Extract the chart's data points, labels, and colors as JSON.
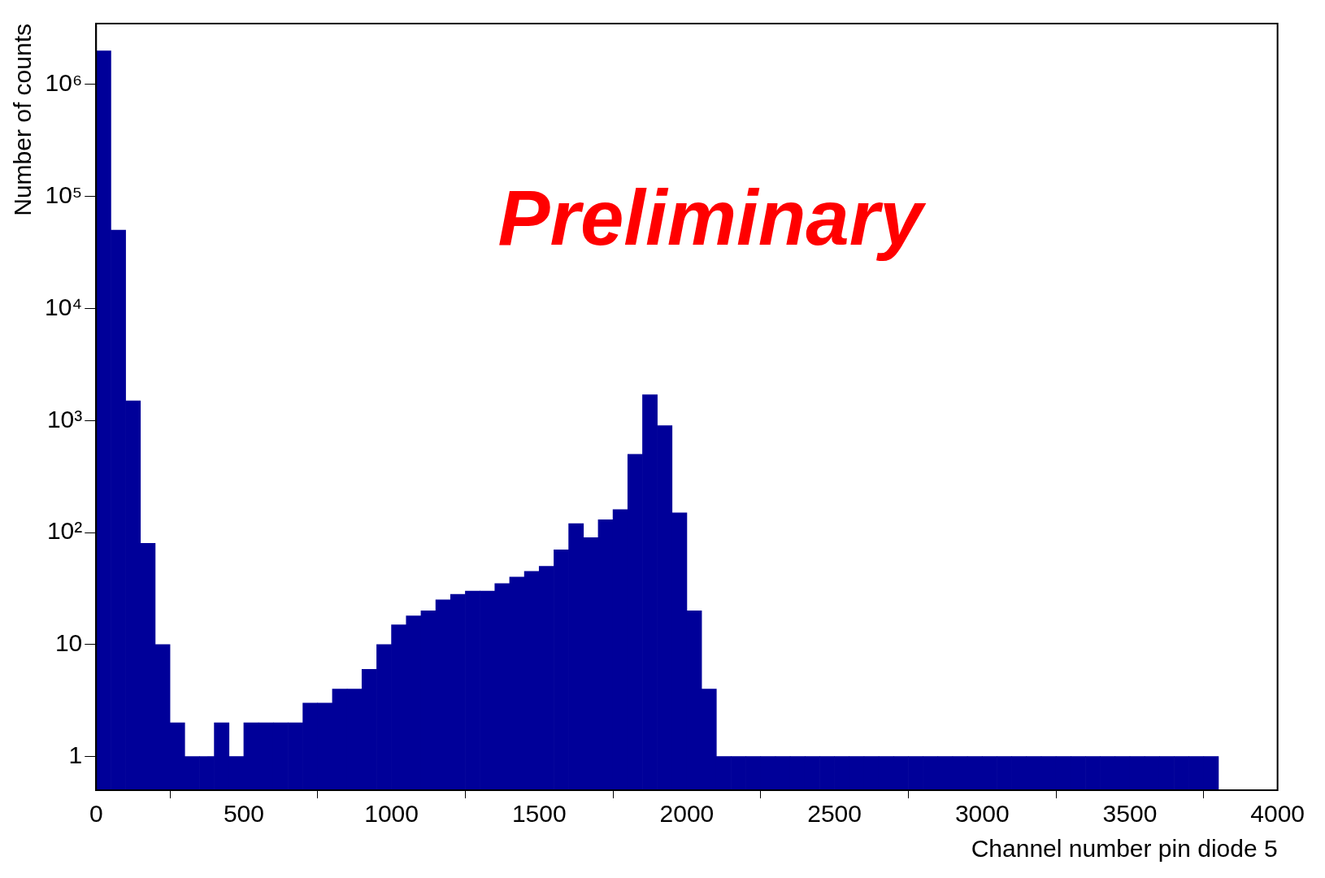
{
  "chart_data": {
    "type": "histogram",
    "xlabel": "Channel number pin diode 5",
    "ylabel": "Number of counts",
    "annotations": [
      "Preliminary"
    ],
    "bins": [
      0,
      50,
      100,
      150,
      200,
      250,
      300,
      350,
      400,
      450,
      500,
      550,
      600,
      650,
      700,
      750,
      800,
      850,
      900,
      950,
      1000,
      1050,
      1100,
      1150,
      1200,
      1250,
      1300,
      1350,
      1400,
      1450,
      1500,
      1550,
      1600,
      1650,
      1700,
      1750,
      1800,
      1850,
      1900,
      1950,
      2000,
      2050,
      2100,
      2150,
      2200,
      2250,
      2300,
      2350,
      2400,
      2450,
      2500,
      2550,
      2600,
      2650,
      2700,
      2750,
      2800,
      2850,
      2900,
      2950,
      3000,
      3050,
      3100,
      3150,
      3200,
      3250,
      3300,
      3350,
      3400,
      3450,
      3500,
      3550,
      3600,
      3650,
      3700,
      3750,
      3800,
      3850,
      3900,
      3950,
      4000
    ],
    "values": [
      2000000,
      50000,
      1500,
      80,
      10,
      2,
      1,
      1,
      2,
      1,
      2,
      2,
      2,
      2,
      3,
      3,
      4,
      4,
      6,
      10,
      15,
      18,
      20,
      25,
      28,
      30,
      30,
      35,
      40,
      45,
      50,
      70,
      120,
      90,
      130,
      160,
      500,
      1700,
      900,
      150,
      20,
      4,
      1,
      1,
      1,
      1,
      1,
      1,
      1,
      1,
      1,
      1,
      1,
      1,
      1,
      1,
      1,
      1,
      1,
      1,
      1,
      1,
      1,
      1,
      1,
      1,
      1,
      1,
      1,
      1,
      1,
      1,
      1,
      1,
      1,
      1,
      null,
      null,
      null,
      null
    ],
    "color": "#000099",
    "log": "y",
    "grid": false,
    "legend": false,
    "xlim": [
      0,
      4000
    ],
    "xticks": [
      0,
      500,
      1000,
      1500,
      2000,
      2500,
      3000,
      3500,
      4000
    ],
    "ylim": [
      0.5,
      3500000
    ],
    "yticks": [
      1,
      10,
      {
        "value": 100,
        "label": "10²"
      },
      {
        "value": 1000,
        "label": "10³"
      },
      {
        "value": 10000,
        "label": "10⁴"
      },
      {
        "value": 100000,
        "label": "10⁵"
      },
      {
        "value": 1000000,
        "label": "10⁶"
      }
    ]
  }
}
